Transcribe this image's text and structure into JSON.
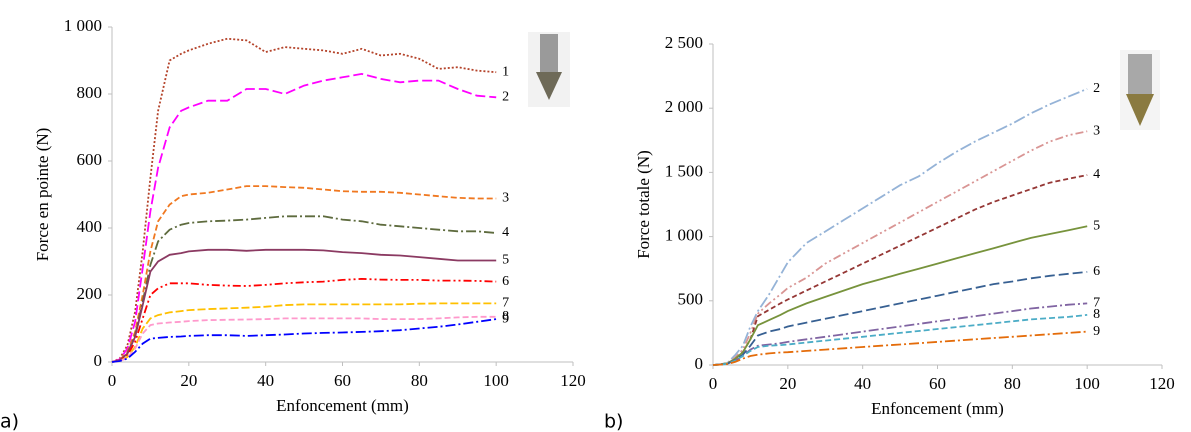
{
  "chart_data": [
    {
      "type": "line",
      "label": "a)",
      "xlabel": "Enfoncement (mm)",
      "ylabel": "Force en pointe (N)",
      "xlim": [
        0,
        120
      ],
      "xticks": [
        0,
        20,
        40,
        60,
        80,
        100,
        120
      ],
      "ylim": [
        0,
        1000
      ],
      "yticks": [
        0,
        200,
        400,
        600,
        800,
        {
          "value": 1000,
          "label": "1 000"
        }
      ],
      "x": [
        0,
        2,
        4,
        6,
        8,
        10,
        12,
        15,
        18,
        20,
        25,
        30,
        35,
        40,
        45,
        50,
        55,
        60,
        65,
        70,
        75,
        80,
        85,
        90,
        95,
        100
      ],
      "series": [
        {
          "name": "1",
          "color": "#b4432a",
          "dash": "2,2",
          "values": [
            0,
            10,
            50,
            150,
            330,
            550,
            750,
            900,
            920,
            930,
            950,
            965,
            960,
            925,
            940,
            935,
            930,
            920,
            935,
            915,
            920,
            905,
            875,
            880,
            870,
            865
          ]
        },
        {
          "name": "2",
          "color": "#ff00ff",
          "dash": "10,4",
          "values": [
            0,
            8,
            40,
            120,
            280,
            450,
            580,
            700,
            750,
            760,
            780,
            780,
            815,
            815,
            800,
            825,
            840,
            850,
            860,
            845,
            835,
            840,
            840,
            815,
            795,
            790
          ]
        },
        {
          "name": "3",
          "color": "#f07820",
          "dash": "6,3",
          "values": [
            0,
            6,
            30,
            90,
            200,
            330,
            420,
            470,
            495,
            500,
            505,
            515,
            525,
            525,
            522,
            520,
            515,
            510,
            508,
            508,
            505,
            500,
            495,
            490,
            488,
            488
          ]
        },
        {
          "name": "4",
          "color": "#5e6b3e",
          "dash": "10,3,2,3",
          "values": [
            0,
            5,
            25,
            80,
            180,
            290,
            360,
            395,
            410,
            415,
            420,
            422,
            425,
            430,
            435,
            435,
            435,
            425,
            420,
            410,
            405,
            400,
            395,
            390,
            390,
            385
          ]
        },
        {
          "name": "5",
          "color": "#8b3a62",
          "dash": "none",
          "values": [
            0,
            5,
            25,
            75,
            170,
            270,
            300,
            320,
            325,
            330,
            335,
            335,
            332,
            335,
            335,
            335,
            333,
            328,
            325,
            320,
            318,
            313,
            308,
            303,
            303,
            303
          ]
        },
        {
          "name": "6",
          "color": "#ff0000",
          "dash": "8,3,2,3,2,3",
          "values": [
            0,
            4,
            20,
            60,
            130,
            200,
            220,
            235,
            235,
            235,
            230,
            228,
            227,
            230,
            235,
            238,
            240,
            245,
            248,
            246,
            245,
            245,
            243,
            243,
            242,
            240
          ]
        },
        {
          "name": "7",
          "color": "#ffc000",
          "dash": "8,3",
          "values": [
            0,
            3,
            15,
            45,
            100,
            130,
            140,
            148,
            152,
            155,
            158,
            160,
            162,
            165,
            170,
            172,
            172,
            172,
            172,
            172,
            172,
            174,
            175,
            175,
            175,
            175
          ]
        },
        {
          "name": "8",
          "color": "#ff99cc",
          "dash": "6,3",
          "values": [
            0,
            3,
            12,
            40,
            85,
            110,
            115,
            118,
            120,
            122,
            125,
            126,
            127,
            128,
            130,
            130,
            130,
            130,
            130,
            128,
            128,
            128,
            130,
            133,
            135,
            135
          ]
        },
        {
          "name": "9",
          "color": "#0000ff",
          "dash": "10,3,2,3",
          "values": [
            0,
            3,
            10,
            30,
            55,
            70,
            72,
            75,
            76,
            78,
            80,
            80,
            78,
            80,
            82,
            85,
            87,
            88,
            90,
            92,
            95,
            100,
            105,
            112,
            120,
            128
          ]
        }
      ]
    },
    {
      "type": "line",
      "label": "b)",
      "xlabel": "Enfoncement (mm)",
      "ylabel": "Force totale (N)",
      "label_color": "#3a3aa8",
      "xlim": [
        0,
        120
      ],
      "xticks": [
        0,
        20,
        40,
        60,
        80,
        100,
        120
      ],
      "ylim": [
        0,
        2500
      ],
      "yticks": [
        0,
        500,
        {
          "value": 1000,
          "label": "1 000"
        },
        {
          "value": 1500,
          "label": "1 500"
        },
        {
          "value": 2000,
          "label": "2 000"
        },
        {
          "value": 2500,
          "label": "2 500"
        }
      ],
      "x": [
        0,
        2,
        4,
        6,
        8,
        10,
        12,
        15,
        18,
        20,
        25,
        30,
        35,
        40,
        45,
        50,
        55,
        60,
        65,
        70,
        75,
        80,
        85,
        90,
        95,
        100
      ],
      "series": [
        {
          "name": "2",
          "color": "#95b3d7",
          "dash": "12,3,2,3",
          "values": [
            0,
            5,
            20,
            80,
            150,
            300,
            420,
            550,
            700,
            800,
            950,
            1040,
            1130,
            1220,
            1310,
            1400,
            1470,
            1570,
            1660,
            1740,
            1810,
            1880,
            1960,
            2030,
            2090,
            2150
          ]
        },
        {
          "name": "3",
          "color": "#d99594",
          "dash": "8,3,2,3,2,3",
          "values": [
            0,
            5,
            15,
            60,
            120,
            250,
            400,
            480,
            550,
            600,
            680,
            790,
            870,
            950,
            1030,
            1110,
            1190,
            1270,
            1350,
            1430,
            1510,
            1590,
            1670,
            1740,
            1790,
            1820
          ]
        },
        {
          "name": "4",
          "color": "#953735",
          "dash": "5,3",
          "values": [
            0,
            5,
            15,
            50,
            100,
            200,
            380,
            430,
            480,
            510,
            580,
            650,
            720,
            790,
            860,
            930,
            1000,
            1070,
            1140,
            1210,
            1270,
            1320,
            1370,
            1420,
            1450,
            1480
          ]
        },
        {
          "name": "5",
          "color": "#77933c",
          "dash": "none",
          "values": [
            0,
            5,
            15,
            50,
            100,
            200,
            310,
            350,
            390,
            420,
            480,
            530,
            580,
            630,
            670,
            710,
            750,
            790,
            830,
            870,
            910,
            950,
            990,
            1020,
            1050,
            1080
          ]
        },
        {
          "name": "6",
          "color": "#376092",
          "dash": "10,4",
          "values": [
            0,
            4,
            12,
            40,
            80,
            150,
            230,
            260,
            280,
            300,
            330,
            360,
            390,
            420,
            450,
            480,
            510,
            540,
            570,
            600,
            630,
            650,
            675,
            695,
            710,
            725
          ]
        },
        {
          "name": "7",
          "color": "#8064a2",
          "dash": "10,3,2,3",
          "values": [
            0,
            4,
            10,
            35,
            70,
            120,
            150,
            160,
            170,
            180,
            200,
            220,
            240,
            260,
            280,
            300,
            320,
            340,
            360,
            380,
            400,
            420,
            440,
            455,
            470,
            480
          ]
        },
        {
          "name": "8",
          "color": "#4bacc6",
          "dash": "6,3",
          "values": [
            0,
            3,
            10,
            35,
            70,
            110,
            140,
            150,
            155,
            160,
            175,
            190,
            205,
            220,
            235,
            250,
            265,
            280,
            295,
            310,
            325,
            340,
            355,
            365,
            375,
            390
          ]
        },
        {
          "name": "9",
          "color": "#e46c0a",
          "dash": "10,3,2,3",
          "values": [
            0,
            3,
            8,
            25,
            50,
            70,
            80,
            90,
            97,
            100,
            110,
            120,
            130,
            140,
            150,
            160,
            170,
            180,
            190,
            200,
            210,
            220,
            230,
            240,
            250,
            260
          ]
        }
      ]
    }
  ]
}
